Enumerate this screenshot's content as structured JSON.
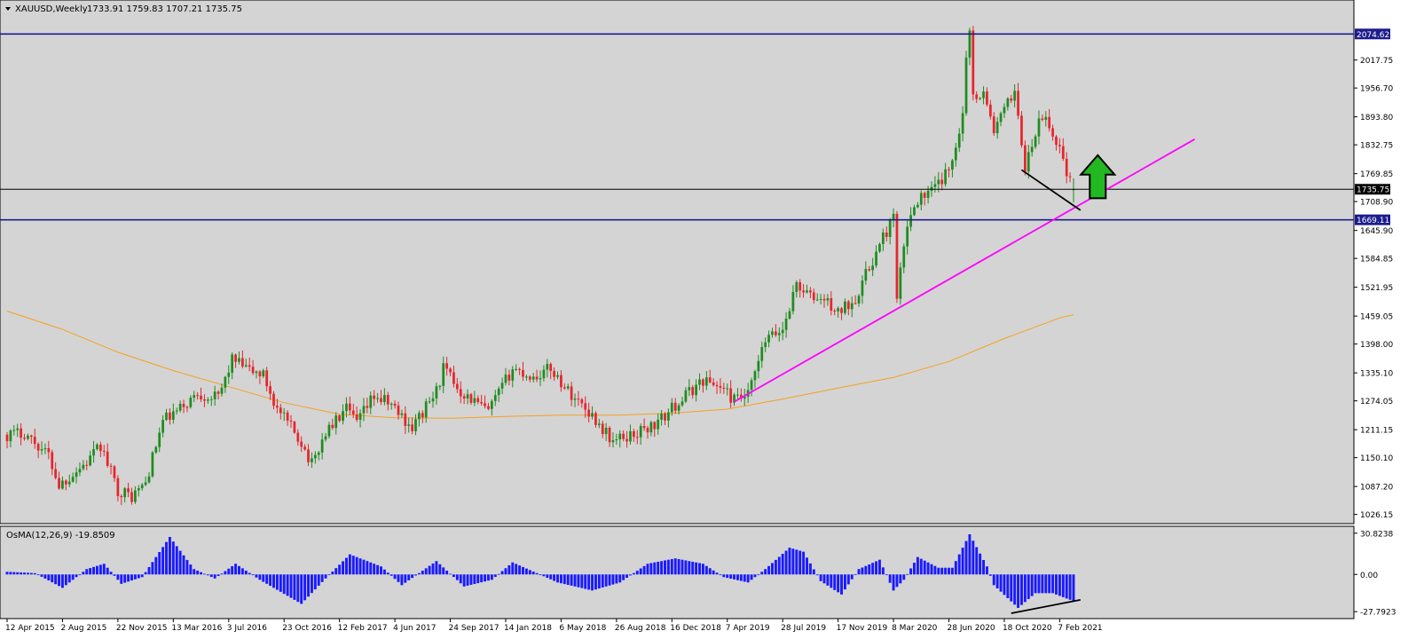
{
  "header": {
    "symbol_label": "XAUUSD,Weekly",
    "ohlc": "1733.91 1759.83 1707.21 1735.75"
  },
  "colors": {
    "background": "#d4d4d4",
    "bull_candle": "#1e8c1e",
    "bear_candle": "#e8242c",
    "level_line": "#1c1c8c",
    "trendline": "#ff00ff",
    "moving_average": "#f5a020",
    "osma_bar": "#1a1aff",
    "arrow": "#22b822"
  },
  "chart_data": [
    {
      "type": "candlestick",
      "instrument": "XAUUSD",
      "timeframe": "Weekly",
      "ohlc_last": {
        "open": 1733.91,
        "high": 1759.83,
        "low": 1707.21,
        "close": 1735.75
      },
      "ylim": [
        1010,
        2110
      ],
      "y_ticks": [
        2017.75,
        1956.7,
        1893.8,
        1832.75,
        1769.85,
        1708.9,
        1645.9,
        1584.85,
        1521.95,
        1459.05,
        1398.0,
        1335.1,
        1274.05,
        1211.15,
        1150.1,
        1087.2,
        1026.15
      ],
      "y_tick_labels": [
        "2017.75",
        "1956.70",
        "1893.80",
        "1832.75",
        "1769.85",
        "1708.90",
        "1645.90",
        "1584.85",
        "1521.95",
        "1459.05",
        "1398.00",
        "1335.10",
        "1274.05",
        "1211.15",
        "1150.10",
        "1087.20",
        "1026.15"
      ],
      "x_range": [
        "2015-04-12",
        "2021-03-07"
      ],
      "x_ticks": [
        {
          "label": "12 Apr 2015",
          "date": "2015-04-12"
        },
        {
          "label": "2 Aug 2015",
          "date": "2015-08-02"
        },
        {
          "label": "22 Nov 2015",
          "date": "2015-11-22"
        },
        {
          "label": "13 Mar 2016",
          "date": "2016-03-13"
        },
        {
          "label": "3 Jul 2016",
          "date": "2016-07-03"
        },
        {
          "label": "23 Oct 2016",
          "date": "2016-10-23"
        },
        {
          "label": "12 Feb 2017",
          "date": "2017-02-12"
        },
        {
          "label": "4 Jun 2017",
          "date": "2017-06-04"
        },
        {
          "label": "24 Sep 2017",
          "date": "2017-09-24"
        },
        {
          "label": "14 Jan 2018",
          "date": "2018-01-14"
        },
        {
          "label": "6 May 2018",
          "date": "2018-05-06"
        },
        {
          "label": "26 Aug 2018",
          "date": "2018-08-26"
        },
        {
          "label": "16 Dec 2018",
          "date": "2018-12-16"
        },
        {
          "label": "7 Apr 2019",
          "date": "2019-04-07"
        },
        {
          "label": "28 Jul 2019",
          "date": "2019-07-28"
        },
        {
          "label": "17 Nov 2019",
          "date": "2019-11-17"
        },
        {
          "label": "8 Mar 2020",
          "date": "2020-03-08"
        },
        {
          "label": "28 Jun 2020",
          "date": "2020-06-28"
        },
        {
          "label": "18 Oct 2020",
          "date": "2020-10-18"
        },
        {
          "label": "7 Feb 2021",
          "date": "2021-02-07"
        }
      ],
      "price_path": [
        {
          "date": "2015-04-12",
          "price": 1200
        },
        {
          "date": "2015-05-17",
          "price": 1205
        },
        {
          "date": "2015-07-05",
          "price": 1155
        },
        {
          "date": "2015-07-26",
          "price": 1090
        },
        {
          "date": "2015-09-20",
          "price": 1140
        },
        {
          "date": "2015-10-18",
          "price": 1175
        },
        {
          "date": "2015-11-22",
          "price": 1080
        },
        {
          "date": "2015-12-20",
          "price": 1065
        },
        {
          "date": "2016-01-17",
          "price": 1095
        },
        {
          "date": "2016-02-21",
          "price": 1230
        },
        {
          "date": "2016-03-20",
          "price": 1250
        },
        {
          "date": "2016-05-01",
          "price": 1290
        },
        {
          "date": "2016-06-12",
          "price": 1280
        },
        {
          "date": "2016-07-10",
          "price": 1365
        },
        {
          "date": "2016-08-14",
          "price": 1340
        },
        {
          "date": "2016-09-11",
          "price": 1330
        },
        {
          "date": "2016-10-09",
          "price": 1255
        },
        {
          "date": "2016-11-27",
          "price": 1185
        },
        {
          "date": "2016-12-18",
          "price": 1135
        },
        {
          "date": "2017-01-15",
          "price": 1205
        },
        {
          "date": "2017-02-26",
          "price": 1255
        },
        {
          "date": "2017-03-19",
          "price": 1225
        },
        {
          "date": "2017-04-23",
          "price": 1285
        },
        {
          "date": "2017-05-28",
          "price": 1265
        },
        {
          "date": "2017-07-09",
          "price": 1215
        },
        {
          "date": "2017-08-27",
          "price": 1295
        },
        {
          "date": "2017-09-10",
          "price": 1345
        },
        {
          "date": "2017-10-15",
          "price": 1295
        },
        {
          "date": "2017-12-10",
          "price": 1250
        },
        {
          "date": "2018-01-28",
          "price": 1345
        },
        {
          "date": "2018-03-11",
          "price": 1325
        },
        {
          "date": "2018-04-15",
          "price": 1345
        },
        {
          "date": "2018-05-20",
          "price": 1295
        },
        {
          "date": "2018-06-24",
          "price": 1260
        },
        {
          "date": "2018-08-19",
          "price": 1185
        },
        {
          "date": "2018-10-07",
          "price": 1205
        },
        {
          "date": "2018-11-18",
          "price": 1225
        },
        {
          "date": "2018-12-23",
          "price": 1265
        },
        {
          "date": "2019-02-17",
          "price": 1320
        },
        {
          "date": "2019-03-24",
          "price": 1305
        },
        {
          "date": "2019-04-21",
          "price": 1275
        },
        {
          "date": "2019-05-19",
          "price": 1285
        },
        {
          "date": "2019-06-23",
          "price": 1405
        },
        {
          "date": "2019-07-28",
          "price": 1430
        },
        {
          "date": "2019-08-25",
          "price": 1530
        },
        {
          "date": "2019-09-22",
          "price": 1500
        },
        {
          "date": "2019-10-20",
          "price": 1495
        },
        {
          "date": "2019-11-17",
          "price": 1465
        },
        {
          "date": "2019-12-22",
          "price": 1500
        },
        {
          "date": "2020-01-19",
          "price": 1565
        },
        {
          "date": "2020-02-23",
          "price": 1645
        },
        {
          "date": "2020-03-08",
          "price": 1675
        },
        {
          "date": "2020-03-15",
          "price": 1490
        },
        {
          "date": "2020-03-29",
          "price": 1615
        },
        {
          "date": "2020-04-19",
          "price": 1710
        },
        {
          "date": "2020-05-24",
          "price": 1730
        },
        {
          "date": "2020-06-28",
          "price": 1775
        },
        {
          "date": "2020-07-26",
          "price": 1900
        },
        {
          "date": "2020-08-02",
          "price": 2035
        },
        {
          "date": "2020-08-09",
          "price": 2070
        },
        {
          "date": "2020-08-16",
          "price": 1945
        },
        {
          "date": "2020-09-06",
          "price": 1945
        },
        {
          "date": "2020-09-27",
          "price": 1865
        },
        {
          "date": "2020-10-18",
          "price": 1905
        },
        {
          "date": "2020-11-08",
          "price": 1955
        },
        {
          "date": "2020-11-29",
          "price": 1780
        },
        {
          "date": "2020-12-27",
          "price": 1880
        },
        {
          "date": "2021-01-10",
          "price": 1890
        },
        {
          "date": "2021-01-24",
          "price": 1850
        },
        {
          "date": "2021-02-07",
          "price": 1830
        },
        {
          "date": "2021-02-21",
          "price": 1775
        },
        {
          "date": "2021-03-07",
          "price": 1735.75
        }
      ],
      "moving_average": [
        {
          "date": "2015-04-12",
          "price": 1470
        },
        {
          "date": "2015-08-02",
          "price": 1430
        },
        {
          "date": "2015-11-22",
          "price": 1380
        },
        {
          "date": "2016-03-13",
          "price": 1340
        },
        {
          "date": "2016-07-03",
          "price": 1305
        },
        {
          "date": "2016-10-23",
          "price": 1270
        },
        {
          "date": "2017-02-12",
          "price": 1245
        },
        {
          "date": "2017-06-04",
          "price": 1237
        },
        {
          "date": "2017-09-24",
          "price": 1236
        },
        {
          "date": "2018-01-14",
          "price": 1240
        },
        {
          "date": "2018-05-06",
          "price": 1243
        },
        {
          "date": "2018-08-26",
          "price": 1243
        },
        {
          "date": "2018-12-16",
          "price": 1247
        },
        {
          "date": "2019-04-07",
          "price": 1256
        },
        {
          "date": "2019-07-28",
          "price": 1278
        },
        {
          "date": "2019-11-17",
          "price": 1302
        },
        {
          "date": "2020-03-08",
          "price": 1325
        },
        {
          "date": "2020-06-28",
          "price": 1360
        },
        {
          "date": "2020-10-18",
          "price": 1410
        },
        {
          "date": "2021-02-07",
          "price": 1455
        },
        {
          "date": "2021-03-07",
          "price": 1462
        }
      ],
      "horizontal_levels": [
        {
          "label": "2074.62",
          "price": 2074.62,
          "style": "level"
        },
        {
          "label": "1735.75",
          "price": 1735.75,
          "style": "current"
        },
        {
          "label": "1669.11",
          "price": 1669.11,
          "style": "level"
        }
      ],
      "trendlines": [
        {
          "name": "support",
          "from": {
            "date": "2019-04-21",
            "price": 1272
          },
          "to": {
            "date": "2021-11-07",
            "price": 1845
          },
          "color": "#ff00ff"
        },
        {
          "name": "divergence",
          "from": {
            "date": "2020-11-22",
            "price": 1778
          },
          "to": {
            "date": "2021-03-21",
            "price": 1690
          },
          "color": "#000000"
        }
      ],
      "arrow": {
        "direction": "up",
        "date": "2021-04-25",
        "price_bottom": 1716,
        "price_top": 1810
      }
    },
    {
      "type": "bar",
      "indicator_label": "OsMA(12,26,9) -19.8509",
      "ylim": [
        -31,
        34
      ],
      "y_ticks": [
        30.8238,
        0.0,
        -27.7923
      ],
      "y_tick_labels": [
        "30.8238",
        "0.00",
        "-27.7923"
      ],
      "anchors": [
        {
          "date": "2015-04-12",
          "value": 2
        },
        {
          "date": "2015-06-07",
          "value": 1
        },
        {
          "date": "2015-08-02",
          "value": -10
        },
        {
          "date": "2015-09-20",
          "value": 4
        },
        {
          "date": "2015-10-25",
          "value": 8
        },
        {
          "date": "2015-11-29",
          "value": -7
        },
        {
          "date": "2016-01-10",
          "value": -2
        },
        {
          "date": "2016-03-06",
          "value": 28
        },
        {
          "date": "2016-04-24",
          "value": 4
        },
        {
          "date": "2016-06-05",
          "value": -3
        },
        {
          "date": "2016-07-17",
          "value": 8
        },
        {
          "date": "2016-09-04",
          "value": -4
        },
        {
          "date": "2016-11-27",
          "value": -22
        },
        {
          "date": "2017-01-15",
          "value": -3
        },
        {
          "date": "2017-03-05",
          "value": 15
        },
        {
          "date": "2017-05-07",
          "value": 6
        },
        {
          "date": "2017-06-18",
          "value": -8
        },
        {
          "date": "2017-08-27",
          "value": 10
        },
        {
          "date": "2017-10-22",
          "value": -9
        },
        {
          "date": "2017-12-17",
          "value": -4
        },
        {
          "date": "2018-01-28",
          "value": 9
        },
        {
          "date": "2018-03-18",
          "value": 1
        },
        {
          "date": "2018-04-29",
          "value": -6
        },
        {
          "date": "2018-07-08",
          "value": -12
        },
        {
          "date": "2018-09-02",
          "value": -6
        },
        {
          "date": "2018-10-28",
          "value": 8
        },
        {
          "date": "2018-12-23",
          "value": 12
        },
        {
          "date": "2019-02-17",
          "value": 8
        },
        {
          "date": "2019-03-31",
          "value": -2
        },
        {
          "date": "2019-05-19",
          "value": -6
        },
        {
          "date": "2019-06-23",
          "value": 4
        },
        {
          "date": "2019-08-11",
          "value": 20
        },
        {
          "date": "2019-09-08",
          "value": 17
        },
        {
          "date": "2019-10-13",
          "value": -5
        },
        {
          "date": "2019-11-24",
          "value": -15
        },
        {
          "date": "2019-12-29",
          "value": 4
        },
        {
          "date": "2020-02-09",
          "value": 11
        },
        {
          "date": "2020-03-08",
          "value": -12
        },
        {
          "date": "2020-03-29",
          "value": -4
        },
        {
          "date": "2020-04-26",
          "value": 13
        },
        {
          "date": "2020-06-07",
          "value": 5
        },
        {
          "date": "2020-07-05",
          "value": 5
        },
        {
          "date": "2020-08-09",
          "value": 30
        },
        {
          "date": "2020-09-13",
          "value": 6
        },
        {
          "date": "2020-09-27",
          "value": -8
        },
        {
          "date": "2020-11-15",
          "value": -25
        },
        {
          "date": "2020-12-20",
          "value": -14
        },
        {
          "date": "2021-01-24",
          "value": -14
        },
        {
          "date": "2021-02-21",
          "value": -18
        },
        {
          "date": "2021-03-07",
          "value": -19.85
        }
      ],
      "trendlines": [
        {
          "name": "osma-divergence",
          "from": {
            "date": "2020-11-01",
            "value": -29
          },
          "to": {
            "date": "2021-03-21",
            "value": -19
          },
          "color": "#000000"
        }
      ]
    }
  ]
}
